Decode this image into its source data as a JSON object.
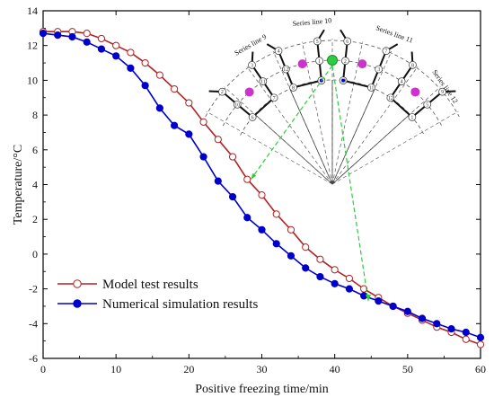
{
  "chart_data": {
    "type": "line",
    "xlabel": "Positive freezing time/min",
    "ylabel": "Temperature/°C",
    "xlim": [
      0,
      60
    ],
    "ylim": [
      -6,
      14
    ],
    "xticks": [
      0,
      10,
      20,
      30,
      40,
      50,
      60
    ],
    "yticks": [
      -6,
      -4,
      -2,
      0,
      2,
      4,
      6,
      8,
      10,
      12,
      14
    ],
    "grid": false,
    "legend": "bottom-left",
    "series": [
      {
        "name": "Model test results",
        "color": "#b22222",
        "marker": "open-circle",
        "x": [
          0,
          2,
          4,
          6,
          8,
          10,
          12,
          14,
          16,
          18,
          20,
          22,
          24,
          26,
          28,
          30,
          32,
          34,
          36,
          38,
          40,
          42,
          44,
          46,
          48,
          50,
          52,
          54,
          56,
          58,
          60
        ],
        "y": [
          12.8,
          12.8,
          12.8,
          12.7,
          12.4,
          12.0,
          11.6,
          11.0,
          10.3,
          9.5,
          8.7,
          7.6,
          6.6,
          5.6,
          4.3,
          3.4,
          2.3,
          1.4,
          0.4,
          -0.3,
          -0.9,
          -1.4,
          -2.0,
          -2.5,
          -3.0,
          -3.4,
          -3.8,
          -4.2,
          -4.5,
          -4.9,
          -5.2
        ]
      },
      {
        "name": "Numerical simulation results",
        "color": "#0000cc",
        "marker": "filled-circle",
        "x": [
          0,
          2,
          4,
          6,
          8,
          10,
          12,
          14,
          16,
          18,
          20,
          22,
          24,
          26,
          28,
          30,
          32,
          34,
          36,
          38,
          40,
          42,
          44,
          46,
          48,
          50,
          52,
          54,
          56,
          58,
          60
        ],
        "y": [
          12.7,
          12.6,
          12.5,
          12.2,
          11.8,
          11.4,
          10.7,
          9.7,
          8.4,
          7.4,
          6.9,
          5.6,
          4.2,
          3.3,
          2.1,
          1.4,
          0.6,
          -0.1,
          -0.8,
          -1.3,
          -1.7,
          -2.0,
          -2.4,
          -2.7,
          -3.0,
          -3.3,
          -3.7,
          -4.0,
          -4.3,
          -4.5,
          -4.8
        ]
      }
    ],
    "inset": {
      "series_labels": [
        "Series line 9",
        "Series line 10",
        "Series line 11",
        "Series line 12"
      ],
      "colors": {
        "highlight": "#2ecc40",
        "marker": "#cc33cc",
        "connector": "#2ecc40"
      }
    }
  }
}
